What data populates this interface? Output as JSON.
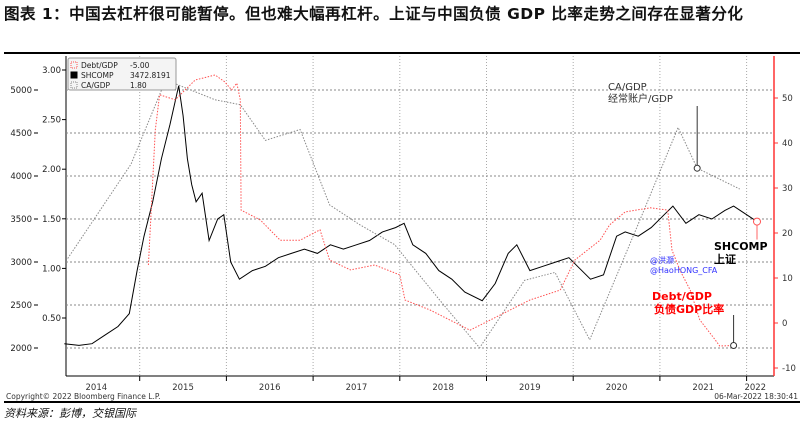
{
  "title": "图表 1：中国去杠杆很可能暂停。但也难大幅再杠杆。上证与中国负债 GDP 比率走势之间存在显著分化",
  "source": "资料来源：彭博，交银国际",
  "copyright": "Copyright© 2022 Bloomberg Finance L.P.",
  "timestamp": "06-Mar-2022 18:30:41",
  "chart_data": {
    "type": "line",
    "x_labels": [
      "2014",
      "2015",
      "2016",
      "2017",
      "2018",
      "2019",
      "2020",
      "2021",
      "2022"
    ],
    "x_range": [
      2013.6,
      2022.5
    ],
    "legend": [
      {
        "name": "Debt/GDP",
        "value": "-5.00",
        "color": "#ff5050"
      },
      {
        "name": "SHCOMP",
        "value": "3472.8191",
        "color": "#000000"
      },
      {
        "name": "CA/GDP",
        "value": "1.80",
        "color": "#888888"
      }
    ],
    "axes": {
      "left_outer": {
        "series": "SHCOMP",
        "ticks": [
          "2000",
          "2500",
          "3000",
          "3500",
          "4000",
          "4500",
          "5000"
        ],
        "range": [
          2000,
          5000
        ]
      },
      "left_inner": {
        "series": "CA/GDP",
        "ticks": [
          "0.50",
          "1.00",
          "1.50",
          "2.00",
          "2.50",
          "3.00"
        ],
        "range": [
          0.5,
          3.0
        ]
      },
      "right": {
        "series": "Debt/GDP",
        "ticks": [
          "-10",
          "0",
          "10",
          "20",
          "30",
          "40",
          "50"
        ],
        "range": [
          -10,
          50
        ],
        "color": "#ff3333"
      }
    },
    "series": [
      {
        "name": "SHCOMP",
        "axis": "left_outer",
        "color": "#000000",
        "x": [
          2014.13,
          2014.3,
          2014.45,
          2014.6,
          2014.75,
          2014.88,
          2014.97,
          2015.05,
          2015.15,
          2015.25,
          2015.35,
          2015.45,
          2015.5,
          2015.55,
          2015.6,
          2015.65,
          2015.72,
          2015.8,
          2015.9,
          2015.97,
          2016.05,
          2016.15,
          2016.3,
          2016.45,
          2016.6,
          2016.75,
          2016.9,
          2017.05,
          2017.2,
          2017.35,
          2017.5,
          2017.65,
          2017.8,
          2017.95,
          2018.05,
          2018.15,
          2018.3,
          2018.45,
          2018.6,
          2018.75,
          2018.95,
          2019.1,
          2019.25,
          2019.35,
          2019.5,
          2019.65,
          2019.8,
          2019.95,
          2020.05,
          2020.2,
          2020.35,
          2020.5,
          2020.6,
          2020.75,
          2020.9,
          2021.05,
          2021.15,
          2021.3,
          2021.45,
          2021.6,
          2021.75,
          2021.85,
          2022.0,
          2022.12
        ],
        "values": [
          2050,
          2030,
          2050,
          2150,
          2250,
          2400,
          2900,
          3300,
          3700,
          4200,
          4600,
          5050,
          4700,
          4200,
          3900,
          3700,
          3800,
          3250,
          3500,
          3550,
          3000,
          2800,
          2900,
          2950,
          3050,
          3100,
          3150,
          3100,
          3200,
          3150,
          3200,
          3250,
          3350,
          3400,
          3450,
          3200,
          3100,
          2900,
          2800,
          2650,
          2550,
          2750,
          3100,
          3200,
          2900,
          2950,
          3000,
          3050,
          2950,
          2800,
          2850,
          3300,
          3350,
          3300,
          3400,
          3550,
          3650,
          3450,
          3550,
          3500,
          3600,
          3650,
          3550,
          3470
        ]
      },
      {
        "name": "CA/GDP",
        "axis": "left_inner",
        "color": "#888888",
        "x": [
          2014.17,
          2014.9,
          2015.3,
          2015.87,
          2016.16,
          2016.45,
          2016.85,
          2017.19,
          2017.54,
          2017.94,
          2018.46,
          2018.92,
          2019.44,
          2019.79,
          2020.19,
          2020.77,
          2021.21,
          2021.43,
          2021.92
        ],
        "values": [
          1.1,
          2.05,
          2.9,
          2.7,
          2.65,
          2.29,
          2.4,
          1.64,
          1.44,
          1.24,
          0.68,
          0.2,
          0.88,
          0.96,
          0.28,
          1.49,
          2.42,
          2.01,
          1.8
        ]
      },
      {
        "name": "Debt/GDP",
        "axis": "right",
        "color": "#ff5050",
        "x": [
          2015.1,
          2015.18,
          2015.23,
          2015.41,
          2015.64,
          2015.87,
          2015.98,
          2016.06,
          2016.12,
          2016.16,
          2016.17,
          2016.39,
          2016.62,
          2016.85,
          2017.08,
          2017.19,
          2017.43,
          2017.71,
          2018.0,
          2018.06,
          2018.35,
          2018.81,
          2019.16,
          2019.5,
          2019.85,
          2020.02,
          2020.31,
          2020.42,
          2020.6,
          2020.89,
          2021.09,
          2021.14,
          2021.23,
          2021.35,
          2021.46,
          2021.64,
          2021.69,
          2021.85
        ],
        "values": [
          12.9,
          42.9,
          50.7,
          49.6,
          54,
          55.1,
          53.6,
          51.8,
          53.3,
          49.6,
          25.1,
          22.9,
          18.4,
          18.4,
          20.7,
          14,
          11.8,
          12.9,
          10.7,
          5.1,
          2.9,
          -1.6,
          1.8,
          5.1,
          7.3,
          14,
          18.4,
          21.8,
          24.7,
          25.6,
          25.1,
          16.2,
          11.8,
          7.3,
          0.7,
          -3.8,
          -5.1,
          -5
        ]
      }
    ],
    "annotations": [
      {
        "lines": [
          "CA/GDP",
          "经常账户/GDP"
        ],
        "color": "#333333"
      },
      {
        "lines": [
          "SHCOMP",
          "上证"
        ],
        "color": "#000000"
      },
      {
        "lines": [
          "Debt/GDP",
          "负债GDP比率"
        ],
        "color": "#ff0000"
      },
      {
        "lines": [
          "@洪灏",
          "@HaoHONG_CFA"
        ],
        "color": "#3333ff"
      }
    ]
  }
}
